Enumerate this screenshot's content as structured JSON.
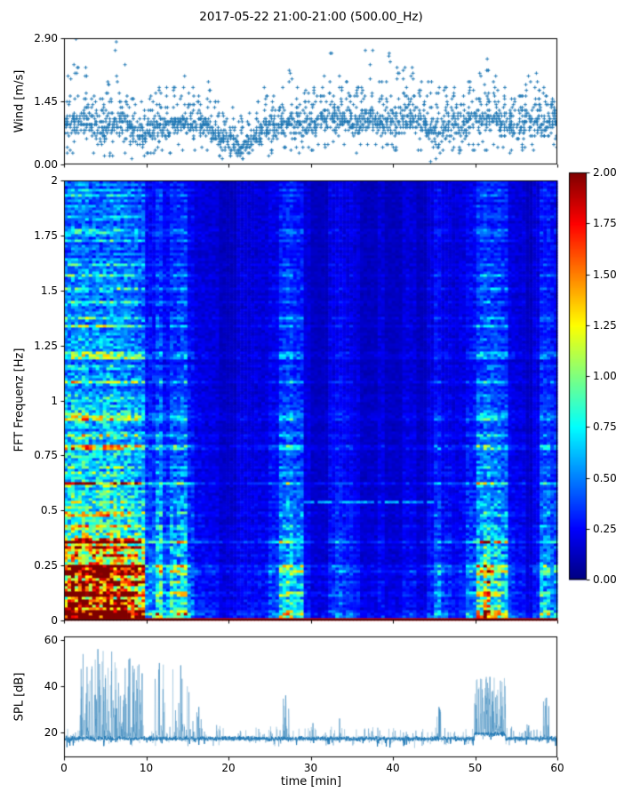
{
  "title": "2017-05-22 21:00-21:00 (500.00_Hz)",
  "colors": {
    "series": "#1f77b4",
    "frame": "#000000",
    "background": "#ffffff"
  },
  "chart_data": [
    {
      "type": "scatter",
      "name": "wind",
      "ylabel": "Wind [m/s]",
      "marker": "+",
      "color": "#1f77b4",
      "xlim": [
        0,
        60
      ],
      "ylim": [
        0,
        2.9
      ],
      "ytick_values": [
        0,
        1.45,
        2.9
      ],
      "ytick_labels": [
        "0.00",
        "1.45",
        "2.90"
      ],
      "xtick_values": [
        0,
        10,
        20,
        30,
        40,
        50,
        60
      ],
      "grid": false,
      "quantize_step": 0.0655,
      "points_per_minute": 30,
      "band_lo": [
        0.55,
        0.5,
        0.55,
        0.5,
        0.4,
        0.45,
        0.5,
        0.5,
        0.35,
        0.3,
        0.4,
        0.5,
        0.5,
        0.55,
        0.6,
        0.6,
        0.55,
        0.5,
        0.4,
        0.2,
        0.1,
        0.1,
        0.15,
        0.35,
        0.45,
        0.5,
        0.5,
        0.55,
        0.5,
        0.55,
        0.6,
        0.6,
        0.65,
        0.6,
        0.6,
        0.55,
        0.6,
        0.6,
        0.55,
        0.6,
        0.6,
        0.6,
        0.6,
        0.5,
        0.35,
        0.35,
        0.45,
        0.5,
        0.45,
        0.55,
        0.6,
        0.6,
        0.6,
        0.55,
        0.5,
        0.55,
        0.6,
        0.6,
        0.55,
        0.55
      ],
      "band_hi": [
        1.25,
        1.3,
        1.45,
        1.3,
        1.2,
        1.3,
        1.5,
        1.4,
        1.1,
        1.0,
        1.2,
        1.3,
        1.2,
        1.25,
        1.3,
        1.35,
        1.25,
        1.2,
        1.1,
        0.9,
        0.8,
        0.75,
        0.8,
        1.0,
        1.1,
        1.2,
        1.25,
        1.3,
        1.25,
        1.3,
        1.35,
        1.5,
        1.55,
        1.45,
        1.4,
        1.3,
        1.45,
        1.5,
        1.35,
        1.4,
        1.5,
        1.55,
        1.5,
        1.35,
        1.2,
        1.15,
        1.25,
        1.3,
        1.2,
        1.4,
        1.5,
        1.55,
        1.45,
        1.3,
        1.2,
        1.25,
        1.45,
        1.5,
        1.35,
        1.3
      ],
      "band_peak": [
        2.0,
        2.9,
        2.2,
        1.6,
        1.5,
        1.9,
        2.8,
        2.3,
        1.5,
        1.45,
        1.6,
        1.75,
        1.75,
        1.8,
        2.0,
        1.75,
        1.6,
        1.9,
        1.45,
        1.2,
        1.3,
        1.1,
        1.2,
        1.45,
        1.75,
        1.6,
        1.8,
        2.15,
        1.75,
        1.7,
        1.8,
        2.0,
        2.55,
        2.0,
        1.9,
        1.75,
        2.6,
        2.65,
        1.9,
        2.55,
        2.2,
        2.25,
        2.2,
        1.9,
        1.9,
        1.75,
        1.8,
        1.75,
        1.6,
        1.9,
        2.1,
        2.4,
        2.0,
        1.75,
        1.5,
        1.6,
        2.0,
        2.1,
        1.75,
        1.5
      ]
    },
    {
      "type": "heatmap",
      "name": "spectrogram",
      "ylabel": "FFT Frequenz [Hz]",
      "colormap": "jet",
      "clim": [
        0,
        2
      ],
      "xlim": [
        0,
        60
      ],
      "ylim": [
        0,
        2
      ],
      "ytick_values": [
        0,
        0.25,
        0.5,
        0.75,
        1,
        1.25,
        1.5,
        1.75,
        2
      ],
      "ytick_labels": [
        "0",
        "0.25",
        "0.5",
        "0.75",
        "1",
        "1.25",
        "1.5",
        "1.75",
        "2"
      ],
      "xtick_values": [
        0,
        10,
        20,
        30,
        40,
        50,
        60
      ],
      "time_bins": 140,
      "freq_bins": 165,
      "background_level": 0.1,
      "freq_profile": {
        "base": 0.35,
        "amp": 1.65,
        "decay": 0.55
      },
      "low_freq_boost": {
        "below_hz": 0.38,
        "min_activity": 0.6,
        "factor": 1.3
      },
      "bottom_row_value": 1.9,
      "activity_per_minute": [
        0.92,
        1,
        1,
        0.9,
        0.95,
        1,
        0.95,
        0.9,
        0.85,
        0.75,
        0.3,
        0.55,
        0.3,
        0.5,
        0.55,
        0.25,
        0.12,
        0.1,
        0.1,
        0.08,
        0.08,
        0.09,
        0.09,
        0.1,
        0.09,
        0.18,
        0.45,
        0.5,
        0.4,
        0.1,
        0.08,
        0.08,
        0.16,
        0.2,
        0.16,
        0.1,
        0.08,
        0.08,
        0.1,
        0.08,
        0.08,
        0.1,
        0.1,
        0.08,
        0.12,
        0.28,
        0.15,
        0.1,
        0.12,
        0.25,
        0.55,
        0.6,
        0.55,
        0.45,
        0.15,
        0.1,
        0.08,
        0.12,
        0.4,
        0.3
      ],
      "hline": {
        "freq": 0.54,
        "t_start": 29,
        "t_end": 45.5,
        "value": 0.5
      },
      "colorbar": {
        "tick_values": [
          0,
          0.25,
          0.5,
          0.75,
          1,
          1.25,
          1.5,
          1.75,
          2
        ],
        "tick_labels": [
          "0.00",
          "0.25",
          "0.50",
          "0.75",
          "1.00",
          "1.25",
          "1.50",
          "1.75",
          "2.00"
        ]
      }
    },
    {
      "type": "line",
      "name": "spl",
      "ylabel": "SPL [dB]",
      "xlabel": "time [min]",
      "color": "#1f77b4",
      "xlim": [
        0,
        60
      ],
      "ylim": [
        9.2,
        61.5
      ],
      "ytick_values": [
        20,
        40,
        60
      ],
      "ytick_labels": [
        "20",
        "40",
        "60"
      ],
      "xtick_values": [
        0,
        10,
        20,
        30,
        40,
        50,
        60
      ],
      "xtick_labels": [
        "0",
        "10",
        "20",
        "30",
        "40",
        "50",
        "60"
      ],
      "baseline_db": 17.3,
      "noise_db": 1.05,
      "elevated_region": {
        "t0": 49.9,
        "t1": 53.7,
        "lift_db": 2.2
      },
      "bursts": [
        {
          "t0": 1.9,
          "t1": 6.3,
          "peak": 56,
          "density": 0.5
        },
        {
          "t0": 6.3,
          "t1": 9.7,
          "peak": 52,
          "density": 0.45
        },
        {
          "t0": 10.7,
          "t1": 12.5,
          "peak": 50,
          "density": 0.18
        },
        {
          "t0": 13.0,
          "t1": 15.4,
          "peak": 49,
          "density": 0.22
        },
        {
          "t0": 15.4,
          "t1": 17.4,
          "peak": 31,
          "density": 0.15
        },
        {
          "t0": 26.5,
          "t1": 27.4,
          "peak": 36,
          "density": 0.5
        },
        {
          "t0": 29.5,
          "t1": 31.0,
          "peak": 24,
          "density": 0.1
        },
        {
          "t0": 33.0,
          "t1": 34.0,
          "peak": 26,
          "density": 0.12
        },
        {
          "t0": 45.3,
          "t1": 45.9,
          "peak": 31,
          "density": 0.4
        },
        {
          "t0": 49.9,
          "t1": 53.7,
          "peak": 44,
          "density": 0.55
        },
        {
          "t0": 56.3,
          "t1": 56.7,
          "peak": 23,
          "density": 0.2
        },
        {
          "t0": 58.3,
          "t1": 59.0,
          "peak": 35,
          "density": 0.5
        }
      ]
    }
  ]
}
